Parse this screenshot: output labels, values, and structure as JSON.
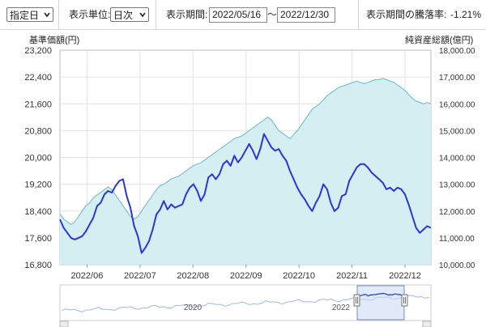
{
  "toolbar": {
    "mode_select": "指定日",
    "unit_label": "表示単位:",
    "unit_select": "日次",
    "period_label": "表示期間:",
    "date_from": "2022/05/16",
    "date_sep": "～",
    "date_to": "2022/12/30",
    "change_label": "表示期間の騰落率:",
    "change_value": "-1.21%"
  },
  "chart_data": {
    "type": "line",
    "left_axis_label": "基準価額(円)",
    "right_axis_label": "純資産総額(億円)",
    "left_ticks": [
      "23,200",
      "22,400",
      "21,600",
      "20,800",
      "20,000",
      "19,200",
      "18,400",
      "17,600",
      "16,800"
    ],
    "right_ticks": [
      "18,000.00",
      "17,000.00",
      "16,000.00",
      "15,000.00",
      "14,000.00",
      "13,000.00",
      "12,000.00",
      "11,000.00",
      "10,000.00"
    ],
    "ylim_left": [
      16800,
      23200
    ],
    "ylim_right": [
      10000,
      18000
    ],
    "x_ticks": [
      "2022/06",
      "2022/07",
      "2022/08",
      "2022/09",
      "2022/10",
      "2022/11",
      "2022/12"
    ],
    "series": [
      {
        "axis": "left",
        "color": "#2b35d8",
        "values": [
          18150,
          17900,
          17750,
          17600,
          17550,
          17600,
          17650,
          17800,
          18000,
          18200,
          18550,
          18650,
          18900,
          19000,
          18950,
          19150,
          19300,
          19350,
          18850,
          18500,
          17950,
          17650,
          17150,
          17300,
          17500,
          17850,
          18300,
          18450,
          18700,
          18450,
          18600,
          18500,
          18550,
          18600,
          18900,
          19100,
          19200,
          19000,
          18700,
          18900,
          19400,
          19500,
          19350,
          19500,
          19800,
          19900,
          19750,
          20050,
          19850,
          20000,
          20200,
          20400,
          20200,
          19950,
          20250,
          20700,
          20500,
          20300,
          20200,
          20250,
          20050,
          19900,
          19600,
          19350,
          19100,
          18900,
          18750,
          18550,
          18400,
          18650,
          18850,
          19200,
          19050,
          18650,
          18400,
          18500,
          18850,
          18900,
          19300,
          19500,
          19700,
          19800,
          19800,
          19700,
          19550,
          19450,
          19350,
          19250,
          19050,
          19100,
          19000,
          19100,
          19050,
          18900,
          18600,
          18250,
          17900,
          17750,
          17850,
          17950,
          17900
        ]
      },
      {
        "axis": "right",
        "color": "#63b9c5",
        "fill": "#d5eef2",
        "values": [
          11900,
          11700,
          11600,
          11500,
          11600,
          11800,
          12000,
          12200,
          12300,
          12500,
          12600,
          12700,
          12800,
          12900,
          12800,
          12600,
          12400,
          12200,
          12000,
          11800,
          11700,
          11800,
          12000,
          12200,
          12400,
          12600,
          12800,
          12950,
          13000,
          13100,
          13200,
          13250,
          13300,
          13400,
          13500,
          13600,
          13700,
          13750,
          13800,
          13900,
          14000,
          14100,
          14200,
          14300,
          14400,
          14500,
          14600,
          14700,
          14750,
          14800,
          14900,
          15000,
          15100,
          15200,
          15300,
          15400,
          15500,
          15400,
          15200,
          15000,
          14900,
          14800,
          14700,
          14850,
          15000,
          15200,
          15400,
          15600,
          15800,
          15900,
          16000,
          16150,
          16300,
          16400,
          16500,
          16600,
          16650,
          16700,
          16750,
          16800,
          16850,
          16800,
          16750,
          16800,
          16850,
          16900,
          16900,
          16950,
          16900,
          16850,
          16800,
          16700,
          16600,
          16500,
          16350,
          16200,
          16100,
          16050,
          16000,
          16050,
          16000
        ]
      }
    ],
    "navigator": {
      "year_labels": [
        "2020",
        "2022"
      ]
    }
  }
}
